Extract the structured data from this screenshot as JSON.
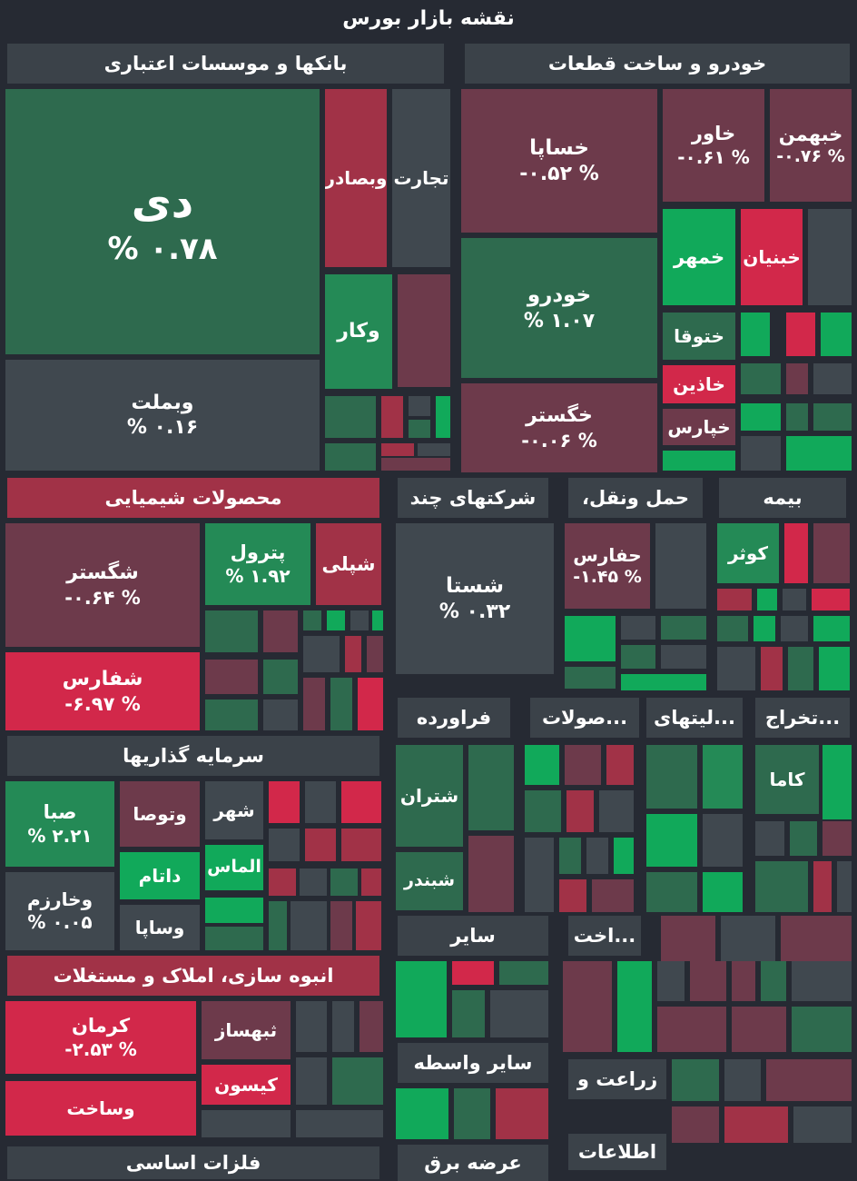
{
  "page_title": "نقشه بازار بورس",
  "colors": {
    "background": "#262a33",
    "strong_green": "#11a95a",
    "green": "#248a56",
    "dim_green": "#2e6a4e",
    "neutral": "#40484f",
    "dim_red": "#6d3a4b",
    "red": "#a13247",
    "strong_red": "#d2284a"
  },
  "sectors": {
    "banks": "بانکها و موسسات اعتباری",
    "auto": "خودرو و ساخت قطعات",
    "chemical": "محصولات شیمیایی",
    "multi": "شرکتهای چند",
    "transport": "حمل ونقل،",
    "insurance": "بیمه",
    "investment": "سرمایه گذاریها",
    "refinery": "فراورده",
    "products": "...صولات",
    "utilities": "...لیتهای",
    "mining": "...تخراج",
    "construction": "انبوه سازی، املاک و مستغلات",
    "other": "سایر",
    "build": "...اخت",
    "other_intermediary": "سایر واسطه",
    "agriculture": "زراعت و",
    "info": "اطلاعات",
    "basic_metals": "فلزات اساسی",
    "bottom_mid": "عرضه برق"
  },
  "tiles": {
    "dey": {
      "name": "دی",
      "pct": "% ۰.۷۸"
    },
    "vebmellat": {
      "name": "وبملت",
      "pct": "% ۰.۱۶"
    },
    "vebsader": {
      "name": "وبصادر"
    },
    "tejarat": {
      "name": "تجارت"
    },
    "vekar": {
      "name": "وکار"
    },
    "khesapa": {
      "name": "خساپا",
      "pct": "-۰.۵۲ %"
    },
    "khavar": {
      "name": "خاور",
      "pct": "-۰.۶۱ %"
    },
    "khbahman": {
      "name": "خبهمن",
      "pct": "-۰.۷۶ %"
    },
    "khodro": {
      "name": "خودرو",
      "pct": "% ۱.۰۷"
    },
    "khmehr": {
      "name": "خمهر"
    },
    "khbonyan": {
      "name": "خبنیان"
    },
    "khtoga": {
      "name": "ختوقا"
    },
    "khazin": {
      "name": "خاذین"
    },
    "khgostar": {
      "name": "خگستر",
      "pct": "-۰.۰۶ %"
    },
    "khpars": {
      "name": "خپارس"
    },
    "shegostar": {
      "name": "شگستر",
      "pct": "-۰.۶۴ %"
    },
    "petrol": {
      "name": "پترول",
      "pct": "% ۱.۹۲"
    },
    "sheply": {
      "name": "شپلی"
    },
    "shefars": {
      "name": "شفارس",
      "pct": "-۶.۹۷ %"
    },
    "shasta": {
      "name": "شستا",
      "pct": "% ۰.۳۲"
    },
    "hafars": {
      "name": "حفارس",
      "pct": "-۱.۴۵ %"
    },
    "kowsar": {
      "name": "کوثر"
    },
    "saba": {
      "name": "صبا",
      "pct": "% ۲.۲۱"
    },
    "vetousa": {
      "name": "وتوصا"
    },
    "shahr": {
      "name": "شهر"
    },
    "datam": {
      "name": "داتام"
    },
    "almas": {
      "name": "الماس"
    },
    "vekharazm": {
      "name": "وخارزم",
      "pct": "% ۰.۰۵"
    },
    "vesapa": {
      "name": "وساپا"
    },
    "shetran": {
      "name": "شتران"
    },
    "shebandar": {
      "name": "شبندر"
    },
    "kama": {
      "name": "کاما"
    },
    "kerman": {
      "name": "کرمان",
      "pct": "-۲.۵۳ %"
    },
    "thebahsaz": {
      "name": "ثبهساز"
    },
    "kison": {
      "name": "کیسون"
    },
    "vesakht": {
      "name": "وساخت"
    }
  }
}
